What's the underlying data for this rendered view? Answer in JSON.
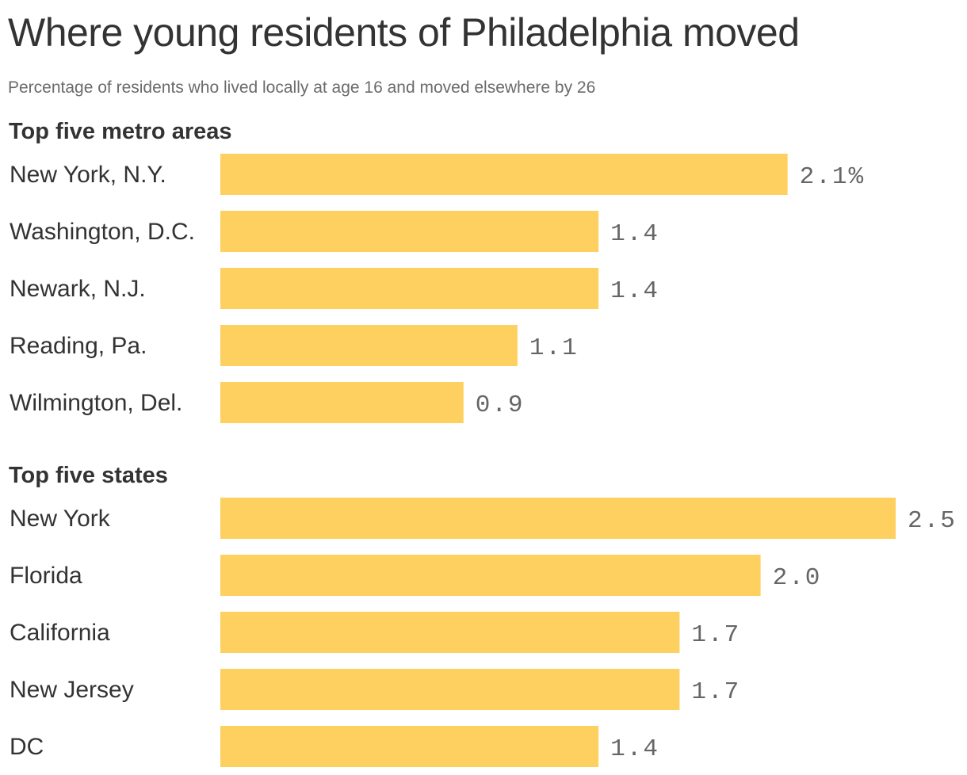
{
  "header": {
    "title": "Where young residents of Philadelphia moved",
    "subtitle": "Percentage of residents who lived locally at age 16 and moved elsewhere by 26"
  },
  "colors": {
    "bar": "#fdd05f",
    "text": "#333333",
    "value_text": "#666666"
  },
  "chart_data": [
    {
      "type": "bar",
      "orientation": "horizontal",
      "title": "Top five metro areas",
      "categories": [
        "New York, N.Y.",
        "Washington, D.C.",
        "Newark, N.J.",
        "Reading, Pa.",
        "Wilmington, Del."
      ],
      "values": [
        2.1,
        1.4,
        1.4,
        1.1,
        0.9
      ],
      "value_labels": [
        "2.1%",
        "1.4",
        "1.4",
        "1.1",
        "0.9"
      ],
      "unit": "%",
      "xlim": [
        0,
        2.5
      ],
      "grid": false,
      "legend": "none"
    },
    {
      "type": "bar",
      "orientation": "horizontal",
      "title": "Top five states",
      "categories": [
        "New York",
        "Florida",
        "California",
        "New Jersey",
        "DC"
      ],
      "values": [
        2.5,
        2.0,
        1.7,
        1.7,
        1.4
      ],
      "value_labels": [
        "2.5",
        "2.0",
        "1.7",
        "1.7",
        "1.4"
      ],
      "unit": "%",
      "xlim": [
        0,
        2.5
      ],
      "grid": false,
      "legend": "none"
    }
  ]
}
